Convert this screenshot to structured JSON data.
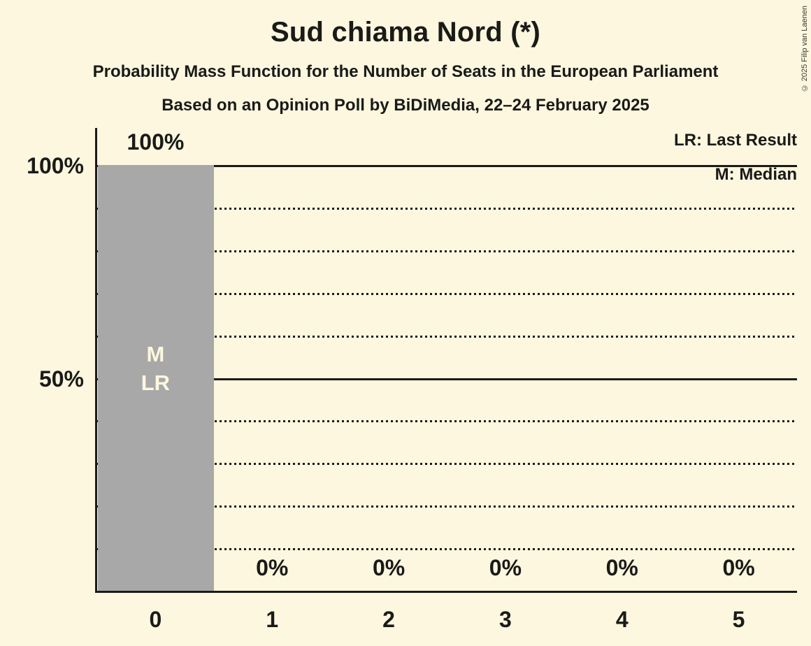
{
  "copyright": "© 2025 Filip van Laenen",
  "colors": {
    "background": "#FCF7DE",
    "bar": "#A8A8A8",
    "text": "#1A1A18",
    "line": "#1A1A18",
    "bar_label": "#FCF7DE"
  },
  "chart_data": {
    "type": "bar",
    "title": "Sud chiama Nord (*)",
    "subtitle": "Probability Mass Function for the Number of Seats in the European Parliament",
    "subsubtitle": "Based on an Opinion Poll by BiDiMedia, 22–24 February 2025",
    "legend": {
      "last_result": "LR: Last Result",
      "median": "M: Median"
    },
    "legend_position": "top-right",
    "xlabel": "",
    "ylabel": "",
    "categories": [
      "0",
      "1",
      "2",
      "3",
      "4",
      "5"
    ],
    "values": [
      100,
      0,
      0,
      0,
      0,
      0
    ],
    "value_labels": [
      "100%",
      "0%",
      "0%",
      "0%",
      "0%",
      "0%"
    ],
    "ylim": [
      0,
      100
    ],
    "yticks": [
      {
        "value": 100,
        "label": "100%"
      },
      {
        "value": 50,
        "label": "50%"
      }
    ],
    "gridlines": [
      {
        "value": 10,
        "style": "dotted"
      },
      {
        "value": 20,
        "style": "dotted"
      },
      {
        "value": 30,
        "style": "dotted"
      },
      {
        "value": 40,
        "style": "dotted"
      },
      {
        "value": 50,
        "style": "solid"
      },
      {
        "value": 60,
        "style": "dotted"
      },
      {
        "value": 70,
        "style": "dotted"
      },
      {
        "value": 80,
        "style": "dotted"
      },
      {
        "value": 90,
        "style": "dotted"
      },
      {
        "value": 100,
        "style": "solid"
      }
    ],
    "bar_annotations": [
      {
        "index": 0,
        "lines": [
          "M",
          "LR"
        ]
      }
    ]
  }
}
